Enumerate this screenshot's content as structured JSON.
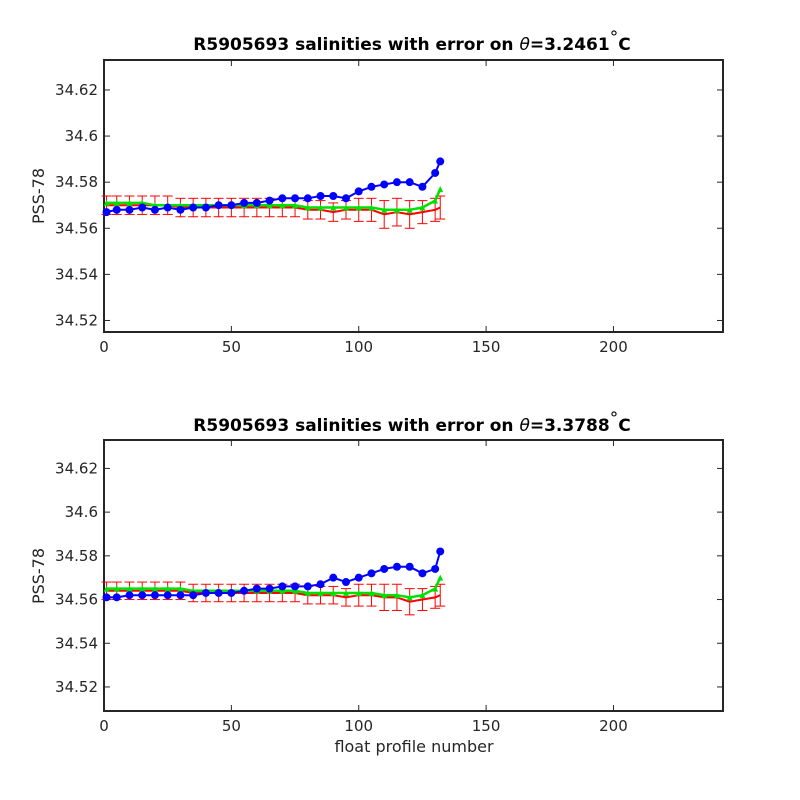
{
  "chart_data": [
    {
      "type": "line",
      "title_prefix": "R5905693 salinities with error on ",
      "title_theta": "θ",
      "title_suffix": "=3.2461",
      "title_deg": "°",
      "title_unit": "C",
      "xlabel": "",
      "ylabel": "PSS-78",
      "xlim": [
        0,
        243
      ],
      "ylim": [
        34.515,
        34.633
      ],
      "xticks": [
        0,
        50,
        100,
        150,
        200
      ],
      "yticks": [
        34.52,
        34.54,
        34.56,
        34.58,
        34.6,
        34.62
      ],
      "ytick_labels": [
        "34.52",
        "34.54",
        "34.56",
        "34.58",
        "34.6",
        "34.62"
      ],
      "grid": false,
      "colors": {
        "float": "#0000ff",
        "mapped": "#ff0000",
        "calibrated": "#00e000"
      },
      "series": [
        {
          "color_key": "float",
          "x": [
            1,
            5,
            10,
            15,
            20,
            25,
            30,
            35,
            40,
            45,
            50,
            55,
            60,
            65,
            70,
            75,
            80,
            85,
            90,
            95,
            100,
            105,
            110,
            115,
            120,
            125,
            130,
            132
          ],
          "y": [
            34.567,
            34.568,
            34.568,
            34.569,
            34.568,
            34.569,
            34.568,
            34.569,
            34.569,
            34.57,
            34.57,
            34.571,
            34.571,
            34.572,
            34.573,
            34.573,
            34.573,
            34.574,
            34.574,
            34.573,
            34.576,
            34.578,
            34.579,
            34.58,
            34.58,
            34.578,
            34.584,
            34.589
          ]
        },
        {
          "color_key": "mapped",
          "x": [
            1,
            5,
            10,
            15,
            20,
            25,
            30,
            35,
            40,
            45,
            50,
            55,
            60,
            65,
            70,
            75,
            80,
            85,
            90,
            95,
            100,
            105,
            110,
            115,
            120,
            125,
            130,
            132
          ],
          "y": [
            34.57,
            34.57,
            34.57,
            34.57,
            34.57,
            34.57,
            34.569,
            34.569,
            34.569,
            34.569,
            34.569,
            34.569,
            34.569,
            34.569,
            34.569,
            34.569,
            34.568,
            34.568,
            34.567,
            34.568,
            34.568,
            34.568,
            34.566,
            34.567,
            34.566,
            34.567,
            34.568,
            34.569
          ]
        },
        {
          "color_key": "calibrated",
          "x": [
            1,
            5,
            10,
            15,
            20,
            25,
            30,
            35,
            40,
            45,
            50,
            55,
            60,
            65,
            70,
            75,
            80,
            85,
            90,
            95,
            100,
            105,
            110,
            115,
            120,
            125,
            130,
            132
          ],
          "y": [
            34.571,
            34.571,
            34.571,
            34.571,
            34.57,
            34.57,
            34.57,
            34.57,
            34.57,
            34.57,
            34.57,
            34.57,
            34.57,
            34.57,
            34.57,
            34.57,
            34.569,
            34.569,
            34.569,
            34.569,
            34.569,
            34.569,
            34.568,
            34.568,
            34.568,
            34.569,
            34.572,
            34.577
          ]
        }
      ],
      "error_halfwidth": [
        0.004,
        0.004,
        0.004,
        0.004,
        0.004,
        0.004,
        0.004,
        0.004,
        0.004,
        0.004,
        0.004,
        0.004,
        0.004,
        0.004,
        0.004,
        0.004,
        0.004,
        0.004,
        0.004,
        0.004,
        0.005,
        0.005,
        0.006,
        0.006,
        0.006,
        0.005,
        0.005,
        0.005
      ]
    },
    {
      "type": "line",
      "title_prefix": "R5905693 salinities with error on ",
      "title_theta": "θ",
      "title_suffix": "=3.3788",
      "title_deg": "°",
      "title_unit": "C",
      "xlabel": "float profile number",
      "ylabel": "PSS-78",
      "xlim": [
        0,
        243
      ],
      "ylim": [
        34.509,
        34.633
      ],
      "xticks": [
        0,
        50,
        100,
        150,
        200
      ],
      "yticks": [
        34.52,
        34.54,
        34.56,
        34.58,
        34.6,
        34.62
      ],
      "ytick_labels": [
        "34.52",
        "34.54",
        "34.56",
        "34.58",
        "34.6",
        "34.62"
      ],
      "grid": false,
      "colors": {
        "float": "#0000ff",
        "mapped": "#ff0000",
        "calibrated": "#00e000"
      },
      "series": [
        {
          "color_key": "float",
          "x": [
            1,
            5,
            10,
            15,
            20,
            25,
            30,
            35,
            40,
            45,
            50,
            55,
            60,
            65,
            70,
            75,
            80,
            85,
            90,
            95,
            100,
            105,
            110,
            115,
            120,
            125,
            130,
            132
          ],
          "y": [
            34.561,
            34.561,
            34.562,
            34.562,
            34.562,
            34.562,
            34.562,
            34.562,
            34.563,
            34.563,
            34.563,
            34.564,
            34.565,
            34.565,
            34.566,
            34.566,
            34.566,
            34.567,
            34.57,
            34.568,
            34.57,
            34.572,
            34.574,
            34.575,
            34.575,
            34.572,
            34.574,
            34.582
          ]
        },
        {
          "color_key": "mapped",
          "x": [
            1,
            5,
            10,
            15,
            20,
            25,
            30,
            35,
            40,
            45,
            50,
            55,
            60,
            65,
            70,
            75,
            80,
            85,
            90,
            95,
            100,
            105,
            110,
            115,
            120,
            125,
            130,
            132
          ],
          "y": [
            34.564,
            34.564,
            34.564,
            34.564,
            34.564,
            34.564,
            34.564,
            34.563,
            34.563,
            34.563,
            34.563,
            34.563,
            34.563,
            34.563,
            34.563,
            34.563,
            34.562,
            34.562,
            34.562,
            34.561,
            34.562,
            34.562,
            34.561,
            34.561,
            34.559,
            34.56,
            34.561,
            34.562
          ]
        },
        {
          "color_key": "calibrated",
          "x": [
            1,
            5,
            10,
            15,
            20,
            25,
            30,
            35,
            40,
            45,
            50,
            55,
            60,
            65,
            70,
            75,
            80,
            85,
            90,
            95,
            100,
            105,
            110,
            115,
            120,
            125,
            130,
            132
          ],
          "y": [
            34.565,
            34.565,
            34.565,
            34.565,
            34.565,
            34.565,
            34.565,
            34.564,
            34.564,
            34.564,
            34.564,
            34.564,
            34.564,
            34.564,
            34.564,
            34.564,
            34.563,
            34.563,
            34.563,
            34.563,
            34.563,
            34.563,
            34.562,
            34.562,
            34.561,
            34.562,
            34.565,
            34.57
          ]
        }
      ],
      "error_halfwidth": [
        0.004,
        0.004,
        0.004,
        0.004,
        0.004,
        0.004,
        0.004,
        0.004,
        0.004,
        0.004,
        0.004,
        0.004,
        0.004,
        0.004,
        0.004,
        0.004,
        0.004,
        0.004,
        0.004,
        0.004,
        0.005,
        0.005,
        0.006,
        0.006,
        0.006,
        0.005,
        0.005,
        0.005
      ]
    }
  ]
}
